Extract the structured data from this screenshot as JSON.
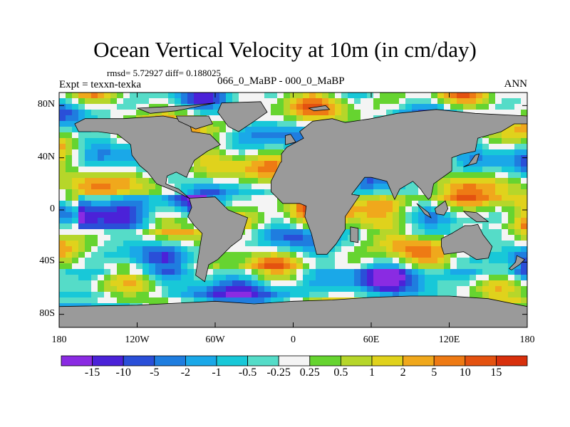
{
  "chart_data": {
    "type": "heatmap",
    "title": "Ocean Vertical Velocity at 10m (in cm/day)",
    "stats": "rmsd= 5.72927  diff= 0.188025",
    "experiment": "Expt = texxn-texka",
    "subtitle": "066_0_MaBP - 000_0_MaBP",
    "season": "ANN",
    "x_ticks": [
      {
        "value": -180,
        "label": "180"
      },
      {
        "value": -120,
        "label": "120W"
      },
      {
        "value": -60,
        "label": "60W"
      },
      {
        "value": 0,
        "label": "0"
      },
      {
        "value": 60,
        "label": "60E"
      },
      {
        "value": 120,
        "label": "120E"
      },
      {
        "value": 180,
        "label": "180"
      }
    ],
    "y_ticks": [
      {
        "value": 80,
        "label": "80N"
      },
      {
        "value": 40,
        "label": "40N"
      },
      {
        "value": 0,
        "label": "0"
      },
      {
        "value": -40,
        "label": "40S"
      },
      {
        "value": -80,
        "label": "80S"
      }
    ],
    "xlim": [
      -180,
      180
    ],
    "ylim": [
      -90,
      90
    ],
    "colorbar": {
      "labels": [
        "-15",
        "-10",
        "-5",
        "-2",
        "-1",
        "-0.5",
        "-0.25",
        "0.25",
        "0.5",
        "1",
        "2",
        "5",
        "10",
        "15"
      ],
      "colors": [
        "#8a2be2",
        "#4b22d8",
        "#2a4fd8",
        "#1f7ddf",
        "#1aa8e8",
        "#18c8d8",
        "#55dcc8",
        "#f4f4f4",
        "#66d430",
        "#b6d62a",
        "#e0d21c",
        "#f0a81c",
        "#ee7a14",
        "#e45210",
        "#d8300c"
      ]
    },
    "land_color": "#9a9a9a",
    "land_regions": [
      {
        "name": "North America",
        "lon_lat": [
          [
            -168,
            66
          ],
          [
            -160,
            70
          ],
          [
            -130,
            70
          ],
          [
            -100,
            72
          ],
          [
            -80,
            68
          ],
          [
            -78,
            60
          ],
          [
            -64,
            58
          ],
          [
            -56,
            50
          ],
          [
            -66,
            45
          ],
          [
            -76,
            38
          ],
          [
            -80,
            30
          ],
          [
            -82,
            25
          ],
          [
            -90,
            29
          ],
          [
            -97,
            26
          ],
          [
            -98,
            20
          ],
          [
            -88,
            16
          ],
          [
            -80,
            9
          ],
          [
            -90,
            14
          ],
          [
            -105,
            20
          ],
          [
            -112,
            29
          ],
          [
            -118,
            34
          ],
          [
            -124,
            42
          ],
          [
            -125,
            50
          ],
          [
            -135,
            58
          ],
          [
            -150,
            60
          ],
          [
            -165,
            60
          ]
        ]
      },
      {
        "name": "Greenland",
        "lon_lat": [
          [
            -55,
            82
          ],
          [
            -25,
            83
          ],
          [
            -20,
            75
          ],
          [
            -30,
            68
          ],
          [
            -42,
            60
          ],
          [
            -50,
            64
          ],
          [
            -58,
            75
          ]
        ]
      },
      {
        "name": "South America",
        "lon_lat": [
          [
            -80,
            9
          ],
          [
            -60,
            10
          ],
          [
            -50,
            0
          ],
          [
            -35,
            -6
          ],
          [
            -40,
            -22
          ],
          [
            -48,
            -28
          ],
          [
            -58,
            -38
          ],
          [
            -65,
            -42
          ],
          [
            -68,
            -55
          ],
          [
            -75,
            -50
          ],
          [
            -72,
            -30
          ],
          [
            -70,
            -18
          ],
          [
            -76,
            -12
          ],
          [
            -81,
            -5
          ],
          [
            -78,
            2
          ]
        ]
      },
      {
        "name": "Afro-Eurasia",
        "lon_lat": [
          [
            -10,
            36
          ],
          [
            -17,
            22
          ],
          [
            -17,
            14
          ],
          [
            -8,
            5
          ],
          [
            5,
            5
          ],
          [
            10,
            3
          ],
          [
            9,
            -5
          ],
          [
            14,
            -18
          ],
          [
            18,
            -34
          ],
          [
            26,
            -34
          ],
          [
            33,
            -26
          ],
          [
            40,
            -15
          ],
          [
            40,
            -5
          ],
          [
            51,
            11
          ],
          [
            45,
            12
          ],
          [
            55,
            25
          ],
          [
            60,
            25
          ],
          [
            72,
            22
          ],
          [
            78,
            8
          ],
          [
            82,
            16
          ],
          [
            92,
            22
          ],
          [
            98,
            16
          ],
          [
            100,
            13
          ],
          [
            104,
            8
          ],
          [
            106,
            10
          ],
          [
            108,
            20
          ],
          [
            122,
            30
          ],
          [
            122,
            40
          ],
          [
            130,
            43
          ],
          [
            140,
            45
          ],
          [
            142,
            55
          ],
          [
            160,
            60
          ],
          [
            170,
            66
          ],
          [
            180,
            66
          ],
          [
            180,
            72
          ],
          [
            140,
            74
          ],
          [
            110,
            77
          ],
          [
            80,
            74
          ],
          [
            60,
            70
          ],
          [
            40,
            67
          ],
          [
            30,
            70
          ],
          [
            15,
            68
          ],
          [
            5,
            60
          ],
          [
            8,
            55
          ],
          [
            -5,
            48
          ],
          [
            -9,
            43
          ],
          [
            -9,
            37
          ]
        ]
      },
      {
        "name": "Madagascar",
        "lon_lat": [
          [
            44,
            -13
          ],
          [
            50,
            -14
          ],
          [
            50,
            -25
          ],
          [
            44,
            -24
          ]
        ]
      },
      {
        "name": "Australia",
        "lon_lat": [
          [
            114,
            -22
          ],
          [
            122,
            -18
          ],
          [
            132,
            -12
          ],
          [
            137,
            -12
          ],
          [
            142,
            -11
          ],
          [
            146,
            -19
          ],
          [
            153,
            -28
          ],
          [
            150,
            -37
          ],
          [
            141,
            -38
          ],
          [
            131,
            -32
          ],
          [
            116,
            -34
          ],
          [
            114,
            -28
          ]
        ]
      },
      {
        "name": "Antarctica",
        "lon_lat": [
          [
            -180,
            -74
          ],
          [
            -120,
            -73
          ],
          [
            -60,
            -70
          ],
          [
            -30,
            -72
          ],
          [
            0,
            -70
          ],
          [
            30,
            -69
          ],
          [
            60,
            -67
          ],
          [
            90,
            -66
          ],
          [
            120,
            -66
          ],
          [
            150,
            -68
          ],
          [
            180,
            -74
          ],
          [
            180,
            -90
          ],
          [
            -180,
            -90
          ]
        ]
      },
      {
        "name": "Borneo",
        "lon_lat": [
          [
            109,
            1
          ],
          [
            117,
            7
          ],
          [
            119,
            1
          ],
          [
            116,
            -4
          ],
          [
            110,
            -3
          ]
        ]
      },
      {
        "name": "New Guinea",
        "lon_lat": [
          [
            131,
            -1
          ],
          [
            141,
            -2
          ],
          [
            150,
            -9
          ],
          [
            141,
            -9
          ],
          [
            134,
            -4
          ]
        ]
      },
      {
        "name": "Sumatra",
        "lon_lat": [
          [
            95,
            5
          ],
          [
            104,
            -2
          ],
          [
            106,
            -6
          ],
          [
            101,
            -3
          ]
        ]
      },
      {
        "name": "Baffin",
        "lon_lat": [
          [
            -90,
            72
          ],
          [
            -65,
            72
          ],
          [
            -62,
            66
          ],
          [
            -75,
            62
          ],
          [
            -88,
            68
          ]
        ]
      },
      {
        "name": "Arctic Islands",
        "lon_lat": [
          [
            -120,
            78
          ],
          [
            -80,
            80
          ],
          [
            -60,
            82
          ],
          [
            -90,
            76
          ],
          [
            -110,
            74
          ]
        ]
      },
      {
        "name": "Svalbard",
        "lon_lat": [
          [
            12,
            78
          ],
          [
            25,
            80
          ],
          [
            28,
            77
          ],
          [
            16,
            76
          ]
        ]
      },
      {
        "name": "British Isles",
        "lon_lat": [
          [
            -6,
            50
          ],
          [
            2,
            52
          ],
          [
            -2,
            58
          ],
          [
            -6,
            57
          ]
        ]
      },
      {
        "name": "Japan",
        "lon_lat": [
          [
            131,
            33
          ],
          [
            141,
            36
          ],
          [
            143,
            43
          ],
          [
            140,
            42
          ],
          [
            135,
            35
          ]
        ]
      },
      {
        "name": "New Zealand",
        "lon_lat": [
          [
            172,
            -35
          ],
          [
            178,
            -38
          ],
          [
            174,
            -42
          ],
          [
            168,
            -46
          ],
          [
            166,
            -45
          ],
          [
            171,
            -40
          ]
        ]
      }
    ]
  }
}
